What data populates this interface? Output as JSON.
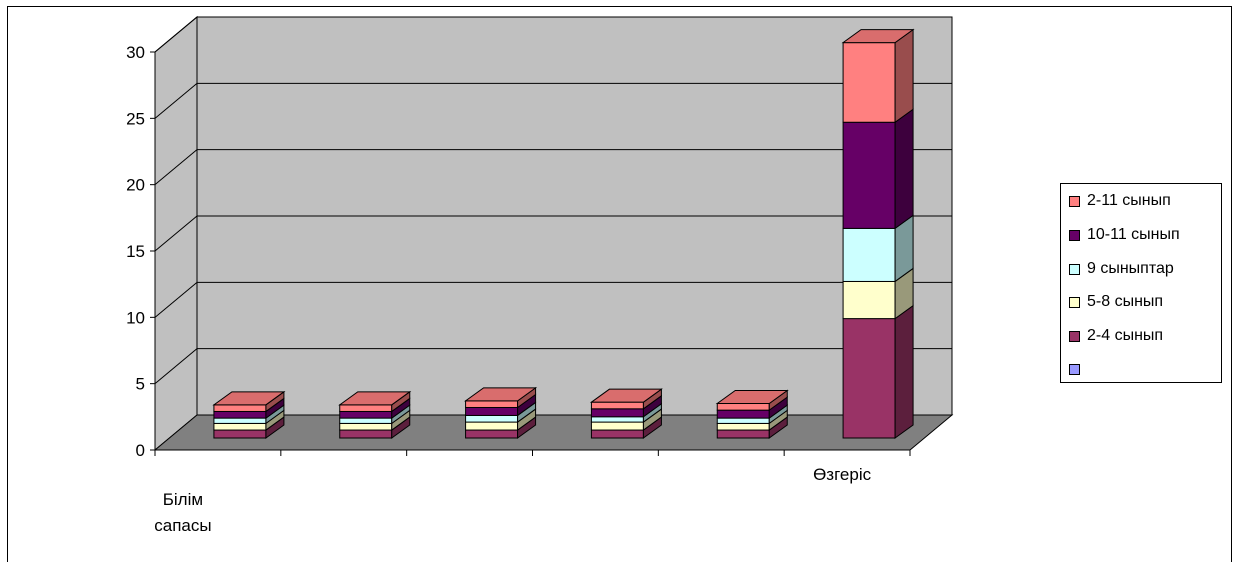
{
  "chart_data": {
    "type": "bar",
    "stacked": true,
    "three_d": true,
    "categories": [
      "Білім сапасы",
      "",
      "",
      "",
      "",
      "Өзгеріс"
    ],
    "series": [
      {
        "name": "2-4 сынып",
        "color": "#993366",
        "values": [
          0.6,
          0.6,
          0.6,
          0.6,
          0.6,
          9.0
        ]
      },
      {
        "name": "5-8 сынып",
        "color": "#FFFFCC",
        "values": [
          0.5,
          0.5,
          0.6,
          0.6,
          0.5,
          2.8
        ]
      },
      {
        "name": "9 сыныптар",
        "color": "#CCFFFF",
        "values": [
          0.4,
          0.4,
          0.5,
          0.4,
          0.4,
          4.0
        ]
      },
      {
        "name": "10-11 сынып",
        "color": "#660066",
        "values": [
          0.5,
          0.5,
          0.6,
          0.6,
          0.6,
          8.0
        ]
      },
      {
        "name": "2-11 сынып",
        "color": "#FF8080",
        "values": [
          0.5,
          0.5,
          0.5,
          0.5,
          0.5,
          6.0
        ]
      }
    ],
    "legend_blank_entry_color": "#9999FF",
    "y_ticks": [
      "0",
      "5",
      "10",
      "15",
      "20",
      "25",
      "30"
    ],
    "ylim": [
      0,
      30
    ],
    "grid": true,
    "legend_position": "right",
    "wall_color": "#C0C0C0",
    "floor_color": "#808080"
  }
}
